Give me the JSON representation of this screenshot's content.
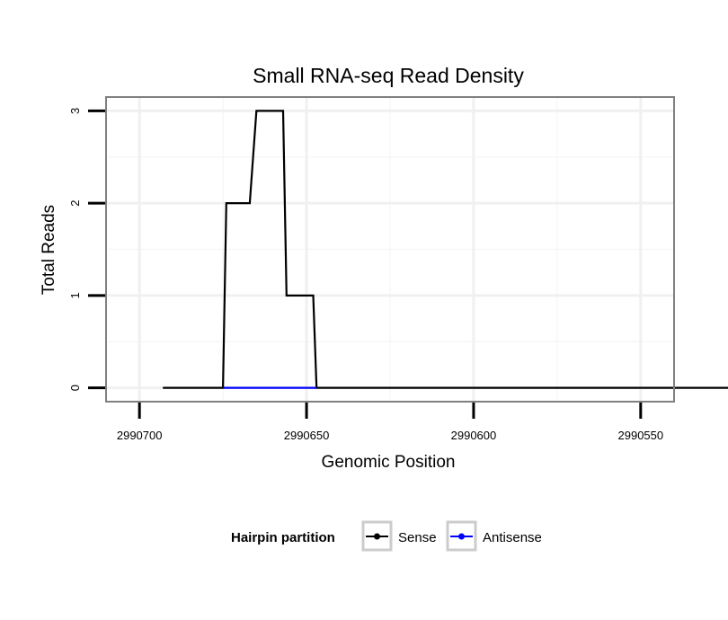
{
  "chart_data": {
    "type": "line",
    "title": "Small RNA-seq Read Density",
    "xlabel": "Genomic Position",
    "ylabel": "Total Reads",
    "x_reversed": true,
    "xlim": [
      2990710,
      2990540
    ],
    "ylim": [
      -0.15,
      3.15
    ],
    "x_ticks": [
      2990700,
      2990650,
      2990600,
      2990550
    ],
    "x_tick_labels": [
      "2990700",
      "2990650",
      "2990600",
      "2990550"
    ],
    "x_minor": [
      2990675,
      2990625,
      2990575
    ],
    "y_ticks": [
      0,
      1,
      2,
      3
    ],
    "y_tick_labels": [
      "0",
      "1",
      "2",
      "3"
    ],
    "y_minor": [
      0.5,
      1.5,
      2.5
    ],
    "grid": true,
    "legend": {
      "title": "Hairpin partition",
      "position": "bottom",
      "entries": [
        {
          "label": "Sense",
          "color": "#000000"
        },
        {
          "label": "Antisense",
          "color": "#0000ff"
        }
      ]
    },
    "series": [
      {
        "name": "Sense",
        "color": "#000000",
        "x": [
          2990693,
          2990675,
          2990674,
          2990667,
          2990665,
          2990657,
          2990656,
          2990648,
          2990647,
          2990520
        ],
        "y": [
          0,
          0,
          2,
          2,
          3,
          3,
          1,
          1,
          0,
          0
        ]
      },
      {
        "name": "Antisense",
        "color": "#0000ff",
        "x": [
          2990675,
          2990647
        ],
        "y": [
          0,
          0
        ]
      }
    ]
  }
}
